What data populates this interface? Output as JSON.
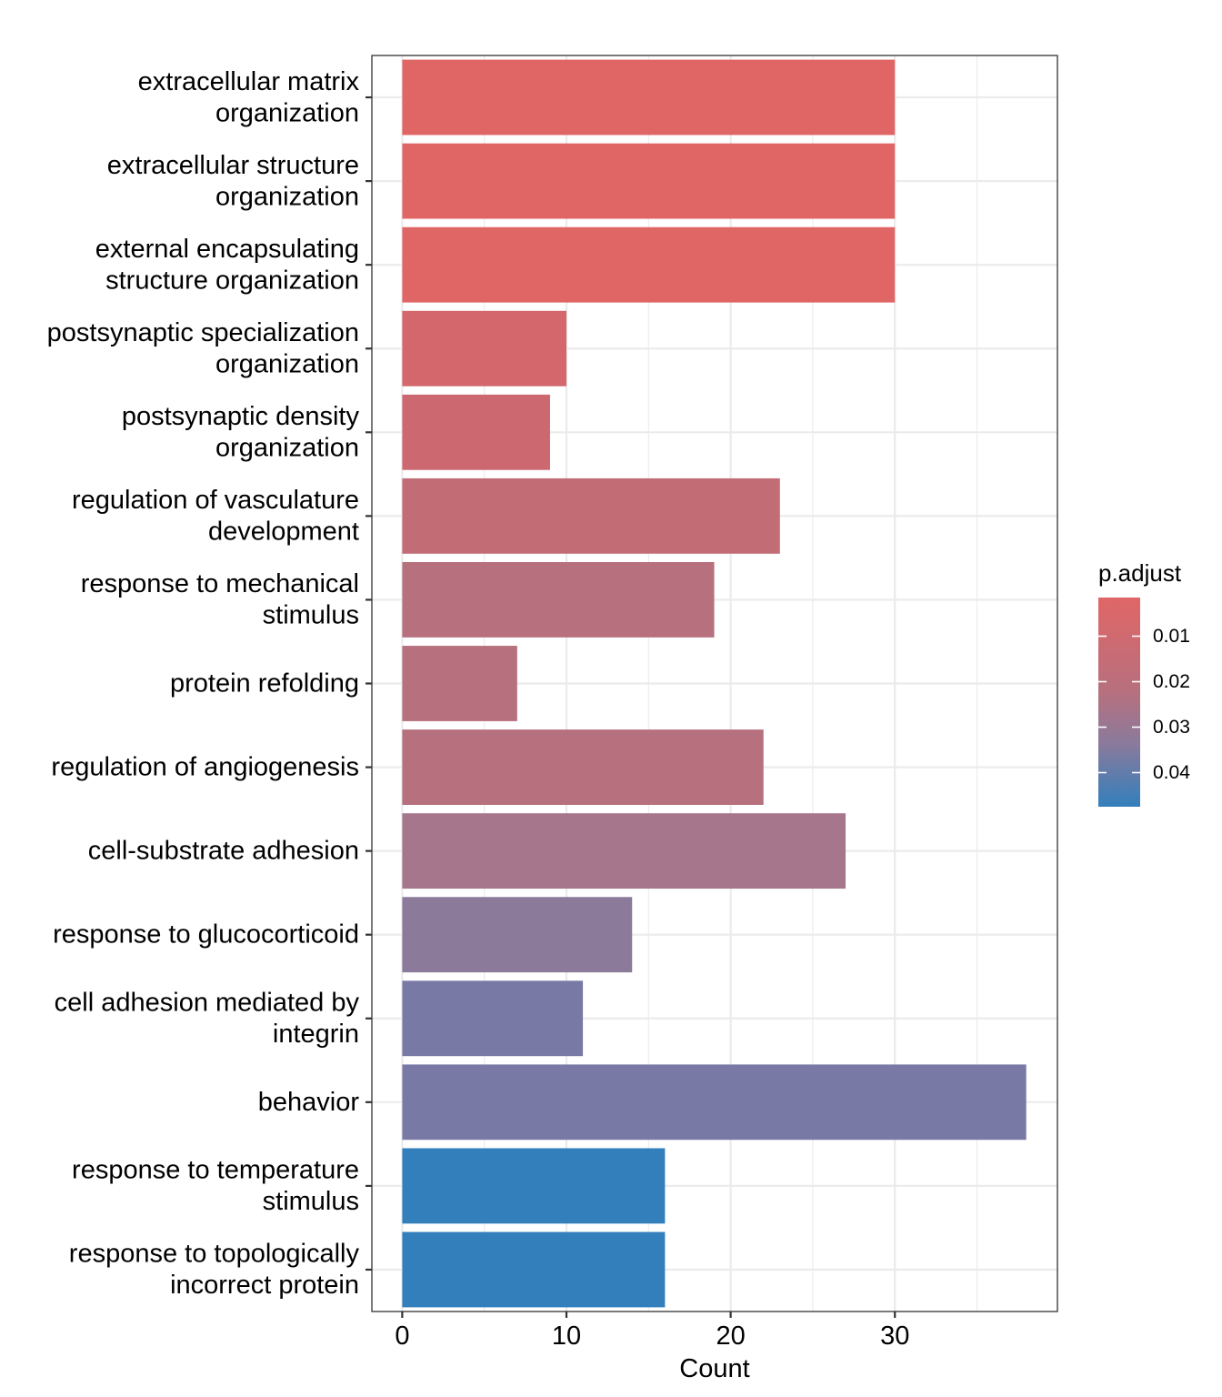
{
  "chart_data": {
    "type": "bar",
    "orientation": "horizontal",
    "xlabel": "Count",
    "ylabel": "",
    "xlim": [
      -1.85,
      39.9
    ],
    "xticks": [
      0,
      10,
      20,
      30
    ],
    "grid": true,
    "categories": [
      [
        "extracellular matrix",
        "organization"
      ],
      [
        "extracellular structure",
        "organization"
      ],
      [
        "external encapsulating",
        "structure organization"
      ],
      [
        "postsynaptic specialization",
        "organization"
      ],
      [
        "postsynaptic density",
        "organization"
      ],
      [
        "regulation of vasculature",
        "development"
      ],
      [
        "response to mechanical",
        "stimulus"
      ],
      [
        "protein refolding"
      ],
      [
        "regulation of angiogenesis"
      ],
      [
        "cell-substrate adhesion"
      ],
      [
        "response to glucocorticoid"
      ],
      [
        "cell adhesion mediated by",
        "integrin"
      ],
      [
        "behavior"
      ],
      [
        "response to temperature",
        "stimulus"
      ],
      [
        "response to topologically",
        "incorrect protein"
      ]
    ],
    "values": [
      30,
      30,
      30,
      10,
      9,
      23,
      19,
      7,
      22,
      27,
      14,
      11,
      38,
      16,
      16
    ],
    "colors": [
      "#E06666",
      "#E06666",
      "#E06666",
      "#D4676C",
      "#CC6870",
      "#C26D76",
      "#B7707E",
      "#B7707E",
      "#B7707E",
      "#A5768C",
      "#8C7A9A",
      "#7979A6",
      "#7979A6",
      "#337FBC",
      "#337FBC"
    ],
    "legend": {
      "title": "p.adjust",
      "position": "right",
      "ticks": [
        "0.01",
        "0.02",
        "0.03",
        "0.04"
      ],
      "tick_values": [
        0.01,
        0.02,
        0.03,
        0.04
      ],
      "range": [
        0.0015,
        0.0475
      ],
      "color_low_p": "#E06666",
      "color_high_p": "#337FBC"
    }
  }
}
